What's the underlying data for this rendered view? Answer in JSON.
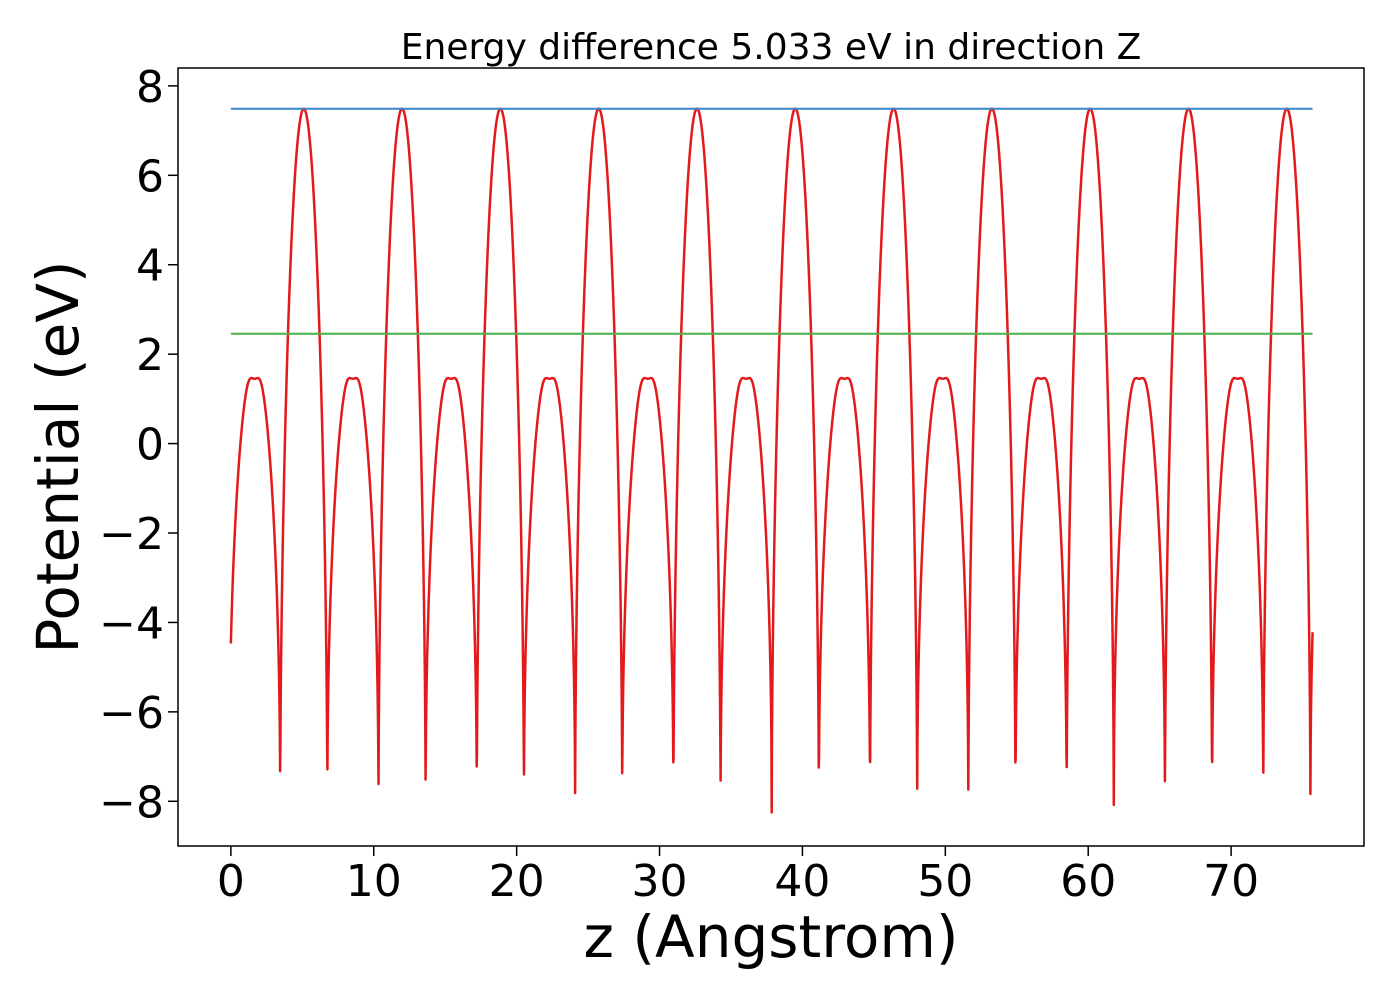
{
  "chart_data": {
    "type": "line",
    "title": "Energy difference 5.033 eV in direction Z",
    "xlabel": "z (Angstrom)",
    "ylabel": "Potential (eV)",
    "xlim": [
      -3.7,
      79.3
    ],
    "ylim": [
      -9.0,
      8.4
    ],
    "xticks": [
      0,
      10,
      20,
      30,
      40,
      50,
      60,
      70
    ],
    "yticks": [
      -8,
      -6,
      -4,
      -2,
      0,
      2,
      4,
      6,
      8
    ],
    "xtick_labels": [
      "0",
      "10",
      "20",
      "30",
      "40",
      "50",
      "60",
      "70"
    ],
    "ytick_labels": [
      "−8",
      "−6",
      "−4",
      "−2",
      "0",
      "2",
      "4",
      "6",
      "8"
    ],
    "grid": false,
    "series": [
      {
        "color": "#e31a1c",
        "style": "periodic-potential",
        "x_range": [
          0,
          75.7
        ],
        "period": 6.88,
        "periods": 11,
        "min": -8.25,
        "barrier_max": 7.49,
        "well_shoulder_max": 1.8,
        "well_center_value": 1.45,
        "peak_positions": [
          5.1,
          11.98,
          18.86,
          25.74,
          32.62,
          39.5,
          46.38,
          53.26,
          60.14,
          67.02,
          73.9
        ]
      },
      {
        "color": "#3a86c8",
        "style": "hline",
        "x": [
          0,
          75.7
        ],
        "values": [
          7.49,
          7.49
        ]
      },
      {
        "color": "#4daf4a",
        "style": "hline",
        "x": [
          0,
          75.7
        ],
        "values": [
          2.457,
          2.457
        ]
      }
    ]
  }
}
